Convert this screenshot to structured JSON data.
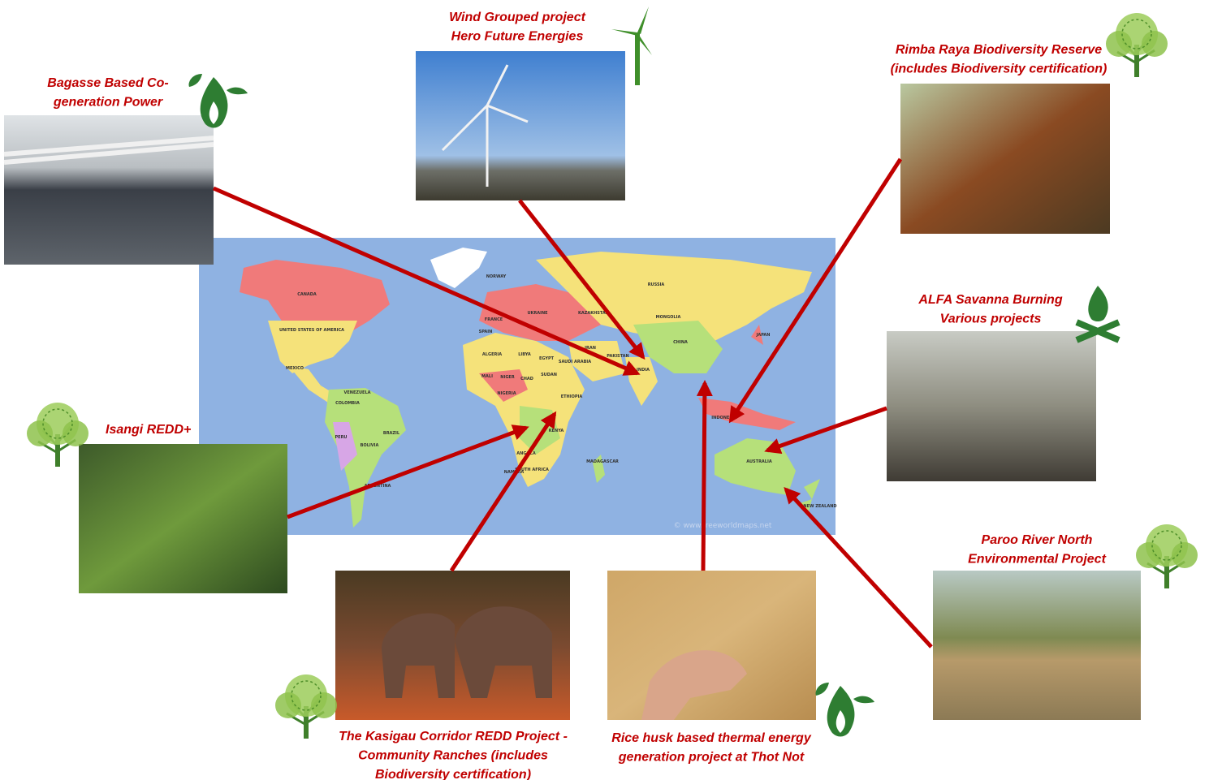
{
  "projects": [
    {
      "lines": [
        "Wind Grouped project",
        "Hero Future Energies"
      ]
    },
    {
      "lines": [
        "Bagasse Based Co-",
        "generation Power"
      ]
    },
    {
      "lines": [
        "Rimba Raya Biodiversity Reserve",
        "(includes Biodiversity certification)"
      ]
    },
    {
      "lines": [
        "ALFA Savanna Burning",
        "Various projects"
      ]
    },
    {
      "lines": [
        "Isangi REDD+"
      ]
    },
    {
      "lines": [
        "Paroo River North",
        "Environmental Project"
      ]
    },
    {
      "lines": [
        "The Kasigau Corridor REDD Project -",
        "Community Ranches (includes",
        "Biodiversity certification)"
      ]
    },
    {
      "lines": [
        "Rice husk based thermal energy",
        "generation project at Thot Not"
      ]
    }
  ],
  "map": {
    "labels": [
      "CANADA",
      "UNITED STATES OF AMERICA",
      "MEXICO",
      "VENEZUELA",
      "COLOMBIA",
      "BRAZIL",
      "PERU",
      "BOLIVIA",
      "ARGENTINA",
      "ALGERIA",
      "LIBYA",
      "EGYPT",
      "MALI",
      "NIGER",
      "CHAD",
      "SUDAN",
      "NIGERIA",
      "ETHIOPIA",
      "KENYA",
      "ANGOLA",
      "NAMIBIA",
      "SOUTH AFRICA",
      "MADAGASCAR",
      "RUSSIA",
      "KAZAKHSTAN",
      "MONGOLIA",
      "CHINA",
      "INDIA",
      "IRAN",
      "SAUDI ARABIA",
      "PAKISTAN",
      "INDONESIA",
      "AUSTRALIA",
      "NEW ZEALAND",
      "JAPAN",
      "UKRAINE",
      "FRANCE",
      "SPAIN",
      "NORWAY",
      "© www.freeworldmaps.net"
    ]
  }
}
